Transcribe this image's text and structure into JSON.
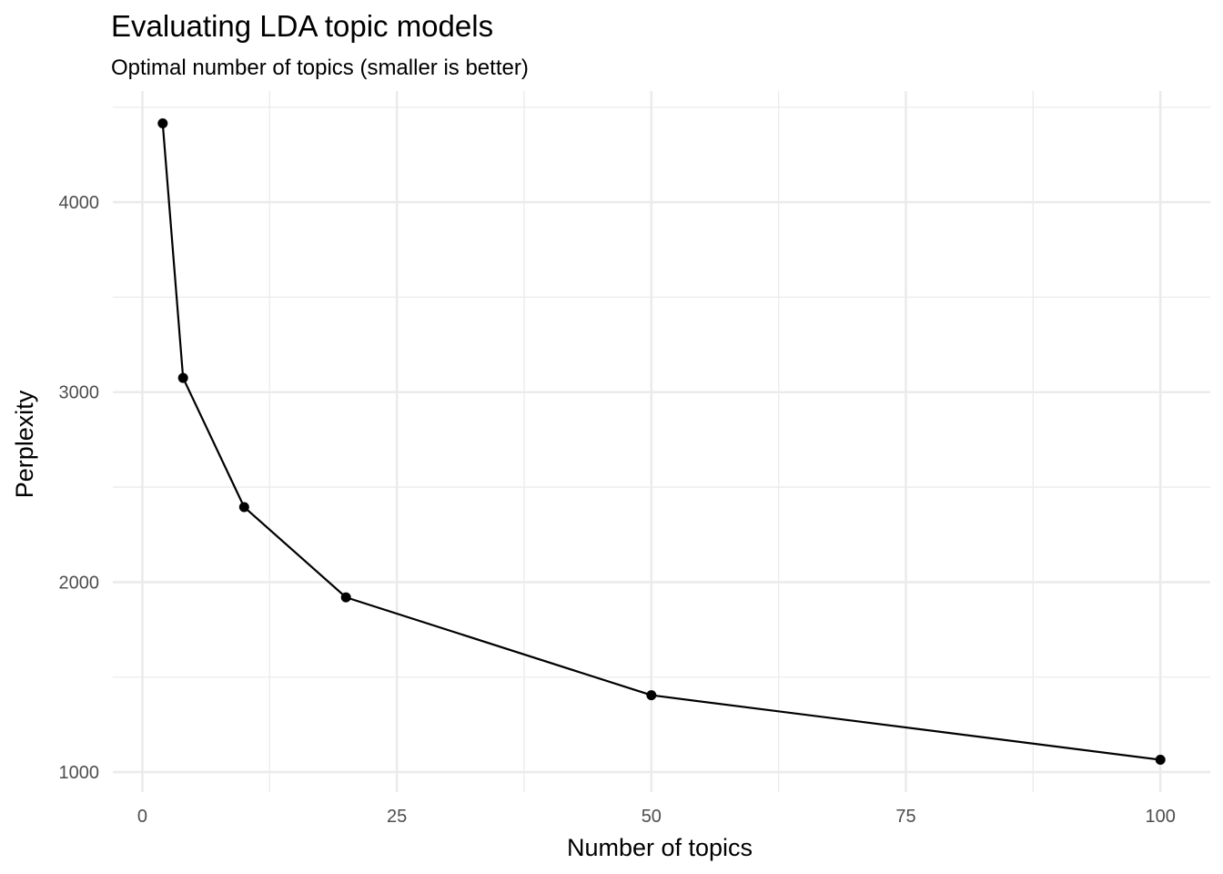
{
  "chart_data": {
    "type": "line",
    "title": "Evaluating LDA topic models",
    "subtitle": "Optimal number of topics (smaller is better)",
    "xlabel": "Number of topics",
    "ylabel": "Perplexity",
    "x": [
      2,
      4,
      10,
      20,
      50,
      100
    ],
    "series": [
      {
        "values": [
          4415,
          3075,
          2395,
          1920,
          1405,
          1065
        ]
      }
    ],
    "xlim": [
      -2.9,
      104.9
    ],
    "ylim": [
      895,
      4585
    ],
    "x_ticks": [
      0,
      25,
      50,
      75,
      100
    ],
    "x_tick_labels": [
      "0",
      "25",
      "50",
      "75",
      "100"
    ],
    "x_minor_ticks": [
      12.5,
      37.5,
      62.5,
      87.5
    ],
    "y_ticks": [
      1000,
      2000,
      3000,
      4000
    ],
    "y_tick_labels": [
      "1000",
      "2000",
      "3000",
      "4000"
    ],
    "y_minor_ticks": [
      1500,
      2500,
      3500,
      4500
    ],
    "grid": true,
    "legend": "none",
    "colors": {
      "line": "#000000",
      "point": "#000000",
      "grid": "#ebebeb",
      "tick_text": "#4d4d4d",
      "background": "#ffffff"
    }
  }
}
